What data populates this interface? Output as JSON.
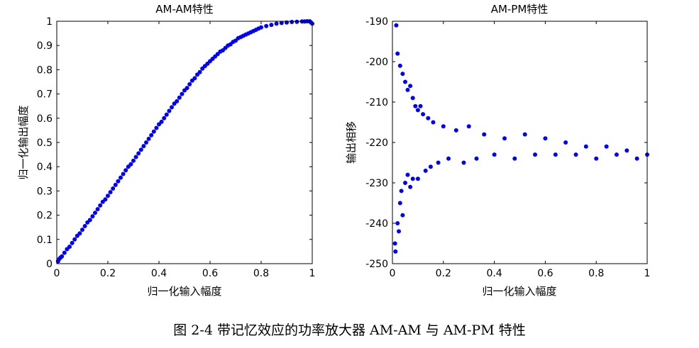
{
  "caption": "图 2-4 带记忆效应的功率放大器 AM-AM 与 AM-PM 特性",
  "chart_data": [
    {
      "type": "scatter",
      "title": "AM-AM特性",
      "xlabel": "归一化输入幅度",
      "ylabel": "归一化输出幅度",
      "xlim": [
        0,
        1
      ],
      "ylim": [
        0,
        1
      ],
      "xticks": [
        "0",
        "0.2",
        "0.4",
        "0.6",
        "0.8",
        "1"
      ],
      "yticks": [
        "0",
        "0.1",
        "0.2",
        "0.3",
        "0.4",
        "0.5",
        "0.6",
        "0.7",
        "0.8",
        "0.9",
        "1"
      ],
      "color": "#0000ff",
      "grid": false,
      "series": [
        {
          "x": [
            0.005,
            0.01,
            0.015,
            0.02,
            0.03,
            0.04,
            0.05,
            0.06,
            0.07,
            0.08,
            0.09,
            0.1,
            0.11,
            0.12,
            0.13,
            0.14,
            0.15,
            0.16,
            0.17,
            0.18,
            0.19,
            0.2,
            0.21,
            0.22,
            0.23,
            0.24,
            0.25,
            0.26,
            0.27,
            0.28,
            0.29,
            0.3,
            0.31,
            0.32,
            0.33,
            0.34,
            0.35,
            0.36,
            0.37,
            0.38,
            0.39,
            0.4,
            0.41,
            0.42,
            0.43,
            0.44,
            0.45,
            0.46,
            0.47,
            0.48,
            0.49,
            0.5,
            0.51,
            0.52,
            0.53,
            0.54,
            0.55,
            0.56,
            0.57,
            0.58,
            0.59,
            0.6,
            0.61,
            0.62,
            0.63,
            0.64,
            0.65,
            0.66,
            0.67,
            0.68,
            0.69,
            0.7,
            0.71,
            0.72,
            0.73,
            0.74,
            0.75,
            0.76,
            0.77,
            0.78,
            0.79,
            0.8,
            0.82,
            0.84,
            0.86,
            0.88,
            0.9,
            0.92,
            0.94,
            0.96,
            0.97,
            0.98,
            0.99,
            0.995,
            1.0
          ],
          "y": [
            0.01,
            0.02,
            0.025,
            0.03,
            0.045,
            0.06,
            0.07,
            0.085,
            0.1,
            0.115,
            0.125,
            0.14,
            0.155,
            0.17,
            0.18,
            0.195,
            0.21,
            0.225,
            0.24,
            0.255,
            0.265,
            0.28,
            0.295,
            0.31,
            0.325,
            0.34,
            0.355,
            0.37,
            0.385,
            0.4,
            0.41,
            0.425,
            0.44,
            0.455,
            0.47,
            0.485,
            0.5,
            0.515,
            0.53,
            0.545,
            0.56,
            0.575,
            0.585,
            0.6,
            0.615,
            0.63,
            0.645,
            0.66,
            0.67,
            0.685,
            0.7,
            0.715,
            0.725,
            0.74,
            0.755,
            0.765,
            0.78,
            0.79,
            0.805,
            0.815,
            0.825,
            0.835,
            0.845,
            0.855,
            0.865,
            0.875,
            0.88,
            0.89,
            0.9,
            0.905,
            0.915,
            0.92,
            0.93,
            0.935,
            0.94,
            0.945,
            0.95,
            0.955,
            0.96,
            0.965,
            0.97,
            0.975,
            0.98,
            0.985,
            0.99,
            0.993,
            0.995,
            0.997,
            0.998,
            0.999,
            0.999,
            1.0,
            1.0,
            0.995,
            0.99
          ]
        }
      ]
    },
    {
      "type": "scatter",
      "title": "AM-PM特性",
      "xlabel": "归一化输入幅度",
      "ylabel": "输出相移",
      "xlim": [
        0,
        1
      ],
      "ylim": [
        -250,
        -190
      ],
      "xticks": [
        "0",
        "0.2",
        "0.4",
        "0.6",
        "0.8",
        "1"
      ],
      "yticks": [
        "-190",
        "-200",
        "-210",
        "-220",
        "-230",
        "-240",
        "-250"
      ],
      "color": "#0000ff",
      "grid": false,
      "series": [
        {
          "x": [
            0.01,
            0.012,
            0.015,
            0.02,
            0.02,
            0.025,
            0.03,
            0.03,
            0.035,
            0.04,
            0.04,
            0.05,
            0.05,
            0.06,
            0.06,
            0.07,
            0.07,
            0.08,
            0.08,
            0.09,
            0.1,
            0.1,
            0.11,
            0.12,
            0.13,
            0.14,
            0.15,
            0.16,
            0.18,
            0.2,
            0.22,
            0.25,
            0.28,
            0.3,
            0.33,
            0.36,
            0.4,
            0.44,
            0.48,
            0.52,
            0.56,
            0.6,
            0.64,
            0.68,
            0.72,
            0.76,
            0.8,
            0.84,
            0.88,
            0.92,
            0.96,
            1.0
          ],
          "y": [
            -245,
            -247,
            -191,
            -198,
            -240,
            -242,
            -201,
            -235,
            -232,
            -203,
            -238,
            -205,
            -230,
            -207,
            -228,
            -206,
            -231,
            -209,
            -229,
            -211,
            -212,
            -229,
            -211,
            -213,
            -227,
            -214,
            -226,
            -215,
            -225,
            -216,
            -224,
            -217,
            -225,
            -216,
            -224,
            -218,
            -223,
            -219,
            -224,
            -218,
            -223,
            -219,
            -223,
            -220,
            -223,
            -221,
            -224,
            -221,
            -223,
            -222,
            -224,
            -223
          ]
        }
      ]
    }
  ]
}
